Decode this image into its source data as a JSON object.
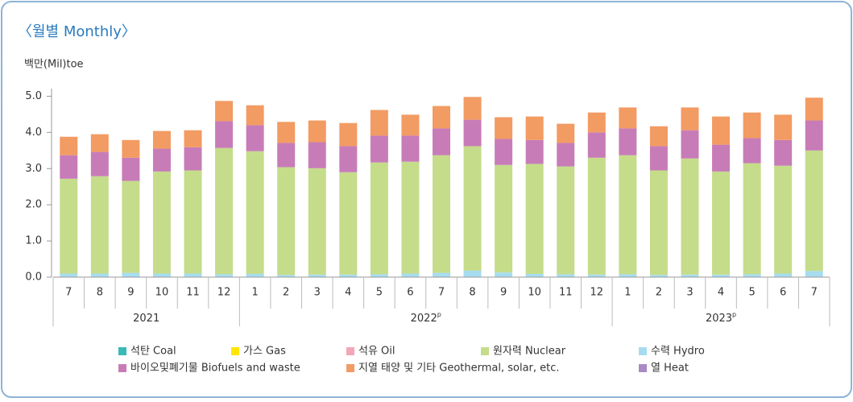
{
  "chart_data": {
    "type": "stacked_bar",
    "title": "〈월별 Monthly〉",
    "y_axis_label": "백만(Mil)toe",
    "categories": [
      "7",
      "8",
      "9",
      "10",
      "11",
      "12",
      "1",
      "2",
      "3",
      "4",
      "5",
      "6",
      "7",
      "8",
      "9",
      "10",
      "11",
      "12",
      "1",
      "2",
      "3",
      "4",
      "5",
      "6",
      "7"
    ],
    "x_groups": [
      {
        "label": "2021",
        "count": 6
      },
      {
        "label": "2022",
        "sup": "p",
        "count": 12
      },
      {
        "label": "2023",
        "sup": "p",
        "count": 7
      }
    ],
    "ylim": [
      0,
      5.5
    ],
    "yticks": [
      {
        "value": 0,
        "label": "0.0"
      },
      {
        "value": 1,
        "label": "1.0"
      },
      {
        "value": 2,
        "label": "2.0"
      },
      {
        "value": 3,
        "label": "3.0"
      },
      {
        "value": 4,
        "label": "4.0"
      },
      {
        "value": 5,
        "label": "5.0"
      }
    ],
    "series": [
      {
        "name": "석탄 Coal",
        "color": "#3bb8b8",
        "values": [
          0,
          0,
          0,
          0,
          0,
          0,
          0,
          0,
          0,
          0,
          0,
          0,
          0,
          0,
          0,
          0,
          0,
          0,
          0,
          0,
          0,
          0,
          0,
          0,
          0
        ]
      },
      {
        "name": "가스 Gas",
        "color": "#ffe600",
        "values": [
          0,
          0,
          0,
          0,
          0,
          0,
          0,
          0,
          0,
          0,
          0,
          0,
          0,
          0,
          0,
          0,
          0,
          0,
          0,
          0,
          0,
          0,
          0,
          0,
          0
        ]
      },
      {
        "name": "석유 Oil",
        "color": "#f4a6b8",
        "values": [
          0,
          0,
          0,
          0,
          0,
          0,
          0,
          0,
          0,
          0,
          0,
          0,
          0,
          0,
          0,
          0,
          0,
          0,
          0,
          0,
          0,
          0,
          0,
          0,
          0
        ]
      },
      {
        "name": "원자력 Nuclear",
        "color": "#c5dc8a",
        "values": [
          2.62,
          2.69,
          2.54,
          2.82,
          2.85,
          3.49,
          3.39,
          2.98,
          2.94,
          2.83,
          3.09,
          3.09,
          3.25,
          3.44,
          2.97,
          3.04,
          2.98,
          3.23,
          3.29,
          2.89,
          3.21,
          2.85,
          3.07,
          2.98,
          3.33
        ]
      },
      {
        "name": "수력 Hydro",
        "color": "#a7dcf0",
        "values": [
          0.1,
          0.1,
          0.12,
          0.1,
          0.1,
          0.08,
          0.09,
          0.06,
          0.07,
          0.07,
          0.08,
          0.1,
          0.12,
          0.18,
          0.13,
          0.09,
          0.08,
          0.07,
          0.08,
          0.06,
          0.07,
          0.07,
          0.08,
          0.1,
          0.17
        ]
      },
      {
        "name": "바이오및폐기물 Biofuels and waste",
        "color": "#c77cb8",
        "values": [
          0.65,
          0.67,
          0.64,
          0.63,
          0.64,
          0.74,
          0.72,
          0.67,
          0.72,
          0.72,
          0.74,
          0.72,
          0.74,
          0.73,
          0.72,
          0.66,
          0.65,
          0.7,
          0.74,
          0.67,
          0.78,
          0.74,
          0.69,
          0.71,
          0.83
        ]
      },
      {
        "name": "지열 태양 및 기타 Geothermal, solar, etc.",
        "color": "#f29b63",
        "values": [
          0.51,
          0.49,
          0.49,
          0.49,
          0.47,
          0.56,
          0.55,
          0.58,
          0.6,
          0.64,
          0.71,
          0.58,
          0.62,
          0.63,
          0.6,
          0.65,
          0.53,
          0.55,
          0.58,
          0.55,
          0.63,
          0.78,
          0.71,
          0.7,
          0.63
        ]
      },
      {
        "name": "열 Heat",
        "color": "#a98ac2",
        "values": [
          0,
          0,
          0,
          0,
          0,
          0,
          0,
          0,
          0,
          0,
          0,
          0,
          0,
          0,
          0,
          0,
          0,
          0,
          0,
          0,
          0,
          0,
          0,
          0,
          0
        ]
      }
    ]
  }
}
